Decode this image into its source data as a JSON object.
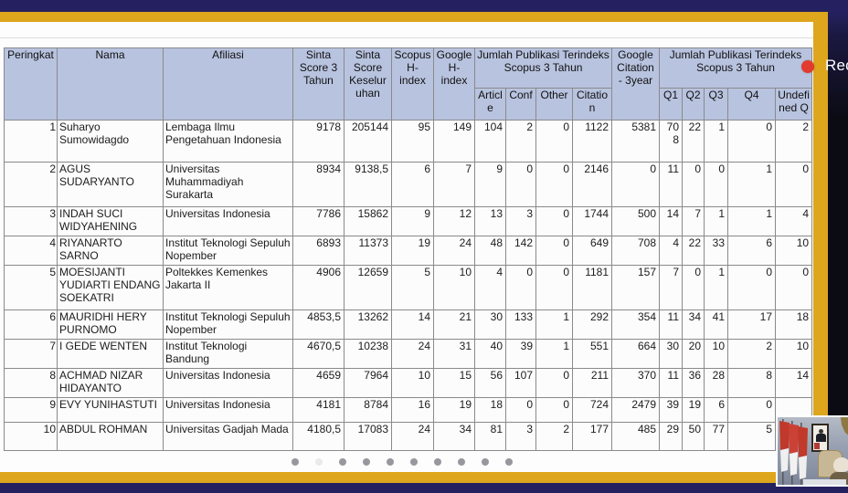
{
  "recording": {
    "label": "Rec"
  },
  "table": {
    "header": {
      "peringkat": "Peringkat",
      "nama": "Nama",
      "afiliasi": "Afiliasi",
      "sinta3": "Sinta Score 3 Tahun",
      "sinta_total": "Sinta Score Keseluruhan",
      "scopus_h": "Scopus H-index",
      "google_h": "Google H-index",
      "group_scopus": "Jumlah Publikasi Terindeks Scopus 3 Tahun",
      "sub_scopus": [
        "Article",
        "Conf",
        "Other",
        "Citation"
      ],
      "google_citation": "Google Citation - 3year",
      "group_q": "Jumlah Publikasi  Terindeks Scopus 3 Tahun",
      "sub_q": [
        "Q1",
        "Q2",
        "Q3",
        "Q4",
        "Undefined Q"
      ]
    },
    "rows": [
      [
        "1",
        "Suharyo Sumowidagdo",
        "Lembaga Ilmu Pengetahuan Indonesia",
        "9178",
        "205144",
        "95",
        "149",
        "104",
        "2",
        "0",
        "1122",
        "5381",
        "708",
        "22",
        "1",
        "0",
        "2"
      ],
      [
        "2",
        "AGUS SUDARYANTO",
        "Universitas Muhammadiyah Surakarta",
        "8934",
        "9138,5",
        "6",
        "7",
        "9",
        "0",
        "0",
        "2146",
        "0",
        "11",
        "0",
        "0",
        "1",
        "0"
      ],
      [
        "3",
        "INDAH SUCI WIDYAHENING",
        "Universitas Indonesia",
        "7786",
        "15862",
        "9",
        "12",
        "13",
        "3",
        "0",
        "1744",
        "500",
        "14",
        "7",
        "1",
        "1",
        "4"
      ],
      [
        "4",
        "RIYANARTO SARNO",
        "Institut Teknologi Sepuluh Nopember",
        "6893",
        "11373",
        "19",
        "24",
        "48",
        "142",
        "0",
        "649",
        "708",
        "4",
        "22",
        "33",
        "6",
        "10"
      ],
      [
        "5",
        "MOESIJANTI YUDIARTI ENDANG SOEKATRI",
        "Poltekkes Kemenkes Jakarta II",
        "4906",
        "12659",
        "5",
        "10",
        "4",
        "0",
        "0",
        "1181",
        "157",
        "7",
        "0",
        "1",
        "0",
        "0"
      ],
      [
        "6",
        "MAURIDHI HERY PURNOMO",
        "Institut Teknologi Sepuluh Nopember",
        "4853,5",
        "13262",
        "14",
        "21",
        "30",
        "133",
        "1",
        "292",
        "354",
        "11",
        "34",
        "41",
        "17",
        "18"
      ],
      [
        "7",
        "I GEDE WENTEN",
        "Institut Teknologi Bandung",
        "4670,5",
        "10238",
        "24",
        "31",
        "40",
        "39",
        "1",
        "551",
        "664",
        "30",
        "20",
        "10",
        "2",
        "10"
      ],
      [
        "8",
        "ACHMAD NIZAR HIDAYANTO",
        "Universitas Indonesia",
        "4659",
        "7964",
        "10",
        "15",
        "56",
        "107",
        "0",
        "211",
        "370",
        "11",
        "36",
        "28",
        "8",
        "14"
      ],
      [
        "9",
        "EVY YUNIHASTUTI",
        "Universitas Indonesia",
        "4181",
        "8784",
        "16",
        "19",
        "18",
        "0",
        "0",
        "724",
        "2479",
        "39",
        "19",
        "6",
        "0",
        ""
      ],
      [
        "10",
        "ABDUL ROHMAN",
        "Universitas Gadjah Mada",
        "4180,5",
        "17083",
        "24",
        "34",
        "81",
        "3",
        "2",
        "177",
        "485",
        "29",
        "50",
        "77",
        "5",
        ""
      ]
    ]
  },
  "dots": {
    "count": 10,
    "faint_index": 1
  },
  "accent_colors": {
    "navy": "#252160",
    "gold": "#dda61d",
    "header_fill": "#b8c3df",
    "record_red": "#e23a2e"
  }
}
